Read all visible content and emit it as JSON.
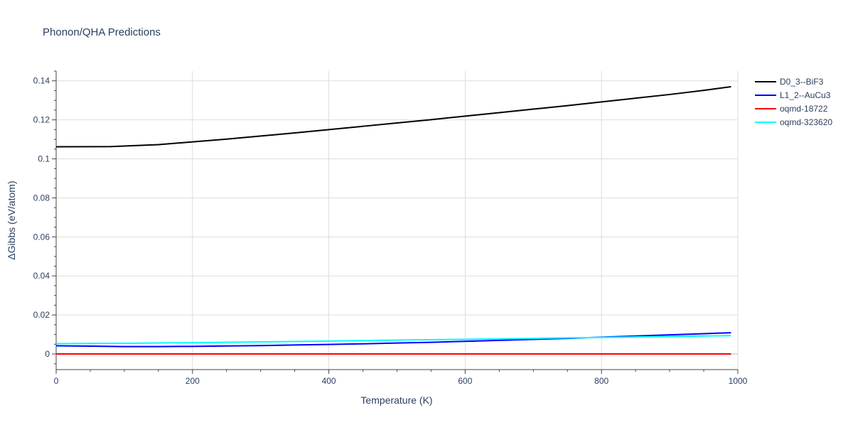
{
  "chart_data": {
    "type": "line",
    "title": "Phonon/QHA Predictions",
    "xlabel": "Temperature (K)",
    "ylabel": "ΔGibbs (eV/atom)",
    "xlim": [
      0,
      1000
    ],
    "ylim": [
      -0.008,
      0.145
    ],
    "x_ticks": [
      0,
      200,
      400,
      600,
      800,
      1000
    ],
    "y_ticks": [
      0,
      0.02,
      0.04,
      0.06,
      0.08,
      0.1,
      0.12,
      0.14
    ],
    "y_tick_labels": [
      "0",
      "0.02",
      "0.04",
      "0.06",
      "0.08",
      "0.1",
      "0.12",
      "0.14"
    ],
    "grid": true,
    "legend_position": "top-right",
    "series": [
      {
        "name": "D0_3--BiF3",
        "color": "#000000",
        "x": [
          0,
          80,
          150,
          200,
          250,
          300,
          350,
          400,
          450,
          500,
          550,
          600,
          650,
          700,
          750,
          800,
          850,
          900,
          950,
          990
        ],
        "y": [
          0.1062,
          0.1063,
          0.1073,
          0.1087,
          0.1101,
          0.1117,
          0.1133,
          0.115,
          0.1167,
          0.1184,
          0.1201,
          0.1219,
          0.1237,
          0.1255,
          0.1273,
          0.1292,
          0.1311,
          0.133,
          0.1351,
          0.137
        ]
      },
      {
        "name": "L1_2--AuCu3",
        "color": "#0000ff",
        "x": [
          0,
          50,
          100,
          150,
          200,
          250,
          300,
          350,
          400,
          450,
          500,
          550,
          600,
          650,
          700,
          750,
          800,
          850,
          900,
          950,
          990
        ],
        "y": [
          0.0042,
          0.004,
          0.0038,
          0.0038,
          0.0039,
          0.0041,
          0.0043,
          0.0046,
          0.0049,
          0.0052,
          0.0056,
          0.006,
          0.0065,
          0.007,
          0.0075,
          0.008,
          0.0086,
          0.0092,
          0.0098,
          0.0104,
          0.0109
        ]
      },
      {
        "name": "oqmd-18722",
        "color": "#ff0000",
        "x": [
          0,
          990
        ],
        "y": [
          0.0,
          0.0
        ]
      },
      {
        "name": "oqmd-323620",
        "color": "#00ffff",
        "x": [
          0,
          100,
          200,
          300,
          400,
          500,
          600,
          700,
          800,
          900,
          990
        ],
        "y": [
          0.0053,
          0.0055,
          0.0058,
          0.0062,
          0.0066,
          0.0071,
          0.0075,
          0.008,
          0.0085,
          0.009,
          0.0094
        ]
      }
    ]
  }
}
